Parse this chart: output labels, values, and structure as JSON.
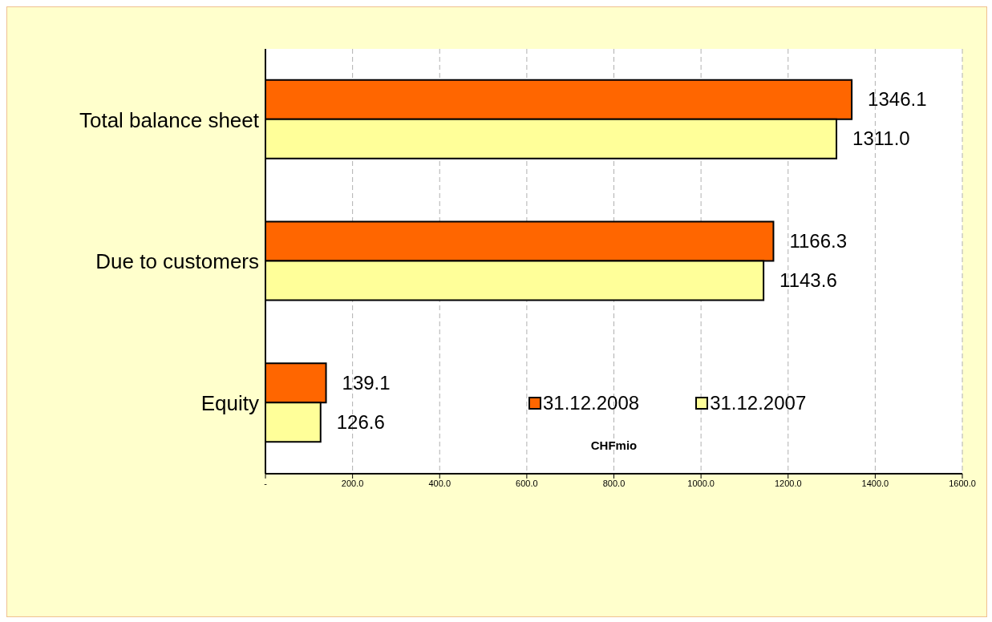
{
  "chart_data": {
    "type": "bar",
    "orientation": "horizontal",
    "xlabel": "CHFmio",
    "categories": [
      "Total balance sheet",
      "Due to customers",
      "Equity"
    ],
    "series": [
      {
        "name": "31.12.2008",
        "color": "#ff6600",
        "values": [
          1346.1,
          1166.3,
          139.1
        ],
        "value_labels": [
          "1346.1",
          "1166.3",
          "139.1"
        ]
      },
      {
        "name": "31.12.2007",
        "color": "#ffff99",
        "values": [
          1311.0,
          1143.6,
          126.6
        ],
        "value_labels": [
          "1311.0",
          "1143.6",
          "126.6"
        ]
      }
    ],
    "xlim": [
      0,
      1600
    ],
    "xticks": [
      {
        "value": 0,
        "label": "-"
      },
      {
        "value": 200,
        "label": "200.0"
      },
      {
        "value": 400,
        "label": "400.0"
      },
      {
        "value": 600,
        "label": "600.0"
      },
      {
        "value": 800,
        "label": "800.0"
      },
      {
        "value": 1000,
        "label": "1000.0"
      },
      {
        "value": 1200,
        "label": "1200.0"
      },
      {
        "value": 1400,
        "label": "1400.0"
      },
      {
        "value": 1600,
        "label": "1600.0"
      }
    ],
    "grid": "x",
    "legend": "bottom right"
  }
}
